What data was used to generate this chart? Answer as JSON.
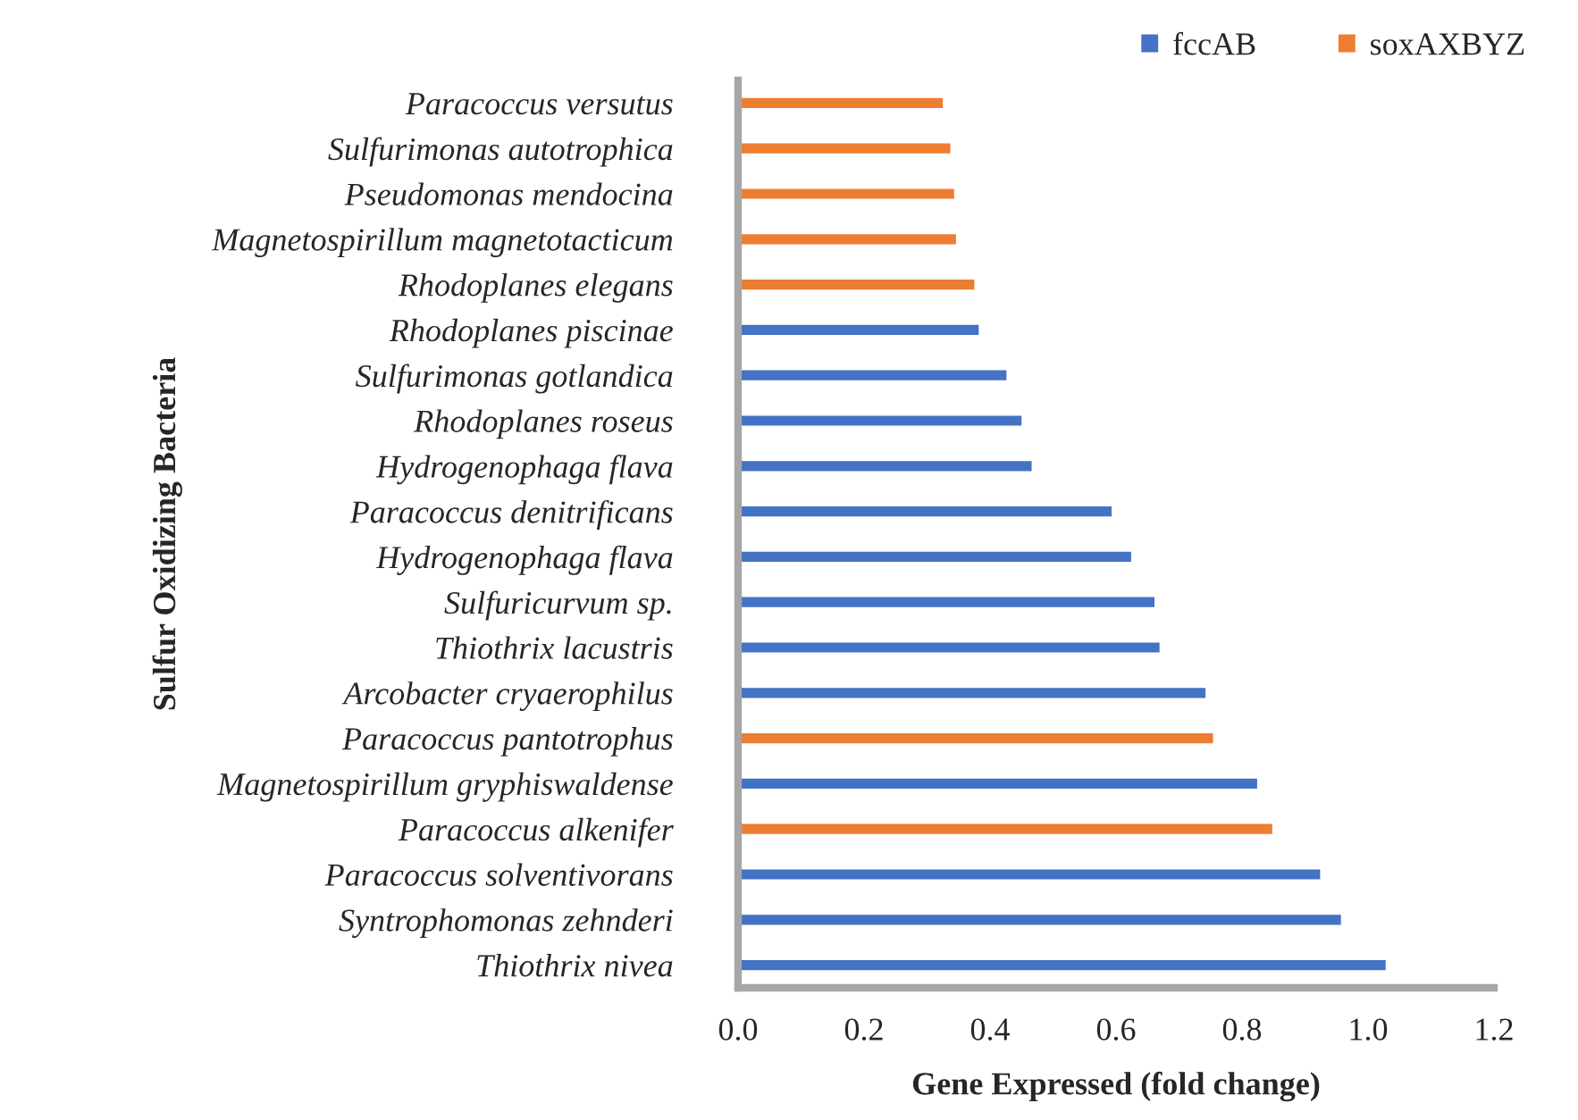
{
  "chart_data": {
    "type": "bar",
    "orientation": "horizontal",
    "categories": [
      "Paracoccus versutus",
      "Sulfurimonas autotrophica",
      "Pseudomonas mendocina",
      "Magnetospirillum magnetotacticum",
      "Rhodoplanes elegans",
      "Rhodoplanes piscinae",
      "Sulfurimonas gotlandica",
      "Rhodoplanes roseus",
      "Hydrogenophaga flava",
      "Paracoccus denitrificans",
      "Hydrogenophaga flava",
      "Sulfuricurvum sp.",
      "Thiothrix lacustris",
      "Arcobacter cryaerophilus",
      "Paracoccus pantotrophus",
      "Magnetospirillum gryphiswaldense",
      "Paracoccus alkenifer",
      "Paracoccus solventivorans",
      "Syntrophomonas zehnderi",
      "Thiothrix nivea"
    ],
    "series": [
      {
        "name": "fccAB",
        "color": "#4472c4",
        "values": [
          null,
          null,
          null,
          null,
          null,
          0.382,
          0.426,
          0.45,
          0.466,
          0.593,
          0.624,
          0.661,
          0.669,
          0.742,
          null,
          0.824,
          null,
          0.924,
          0.957,
          1.028
        ]
      },
      {
        "name": "soxAXBYZ",
        "color": "#ed7d31",
        "values": [
          0.325,
          0.337,
          0.343,
          0.346,
          0.375,
          null,
          null,
          null,
          null,
          null,
          null,
          null,
          null,
          null,
          0.754,
          null,
          0.848,
          null,
          null,
          null
        ]
      }
    ],
    "xlim": [
      0,
      1.2
    ],
    "xticks": [
      {
        "value": 0,
        "label": "0.0"
      },
      {
        "value": 0.2,
        "label": "0.2"
      },
      {
        "value": 0.4,
        "label": "0.4"
      },
      {
        "value": 0.6,
        "label": "0.6"
      },
      {
        "value": 0.8,
        "label": "0.8"
      },
      {
        "value": 1.0,
        "label": "1.0"
      },
      {
        "value": 1.2,
        "label": "1.2"
      }
    ],
    "xlabel": "Gene Expressed (fold change)",
    "ylabel": "Sulfur Oxidizing Bacteria",
    "legend": "top right",
    "grid": false
  }
}
